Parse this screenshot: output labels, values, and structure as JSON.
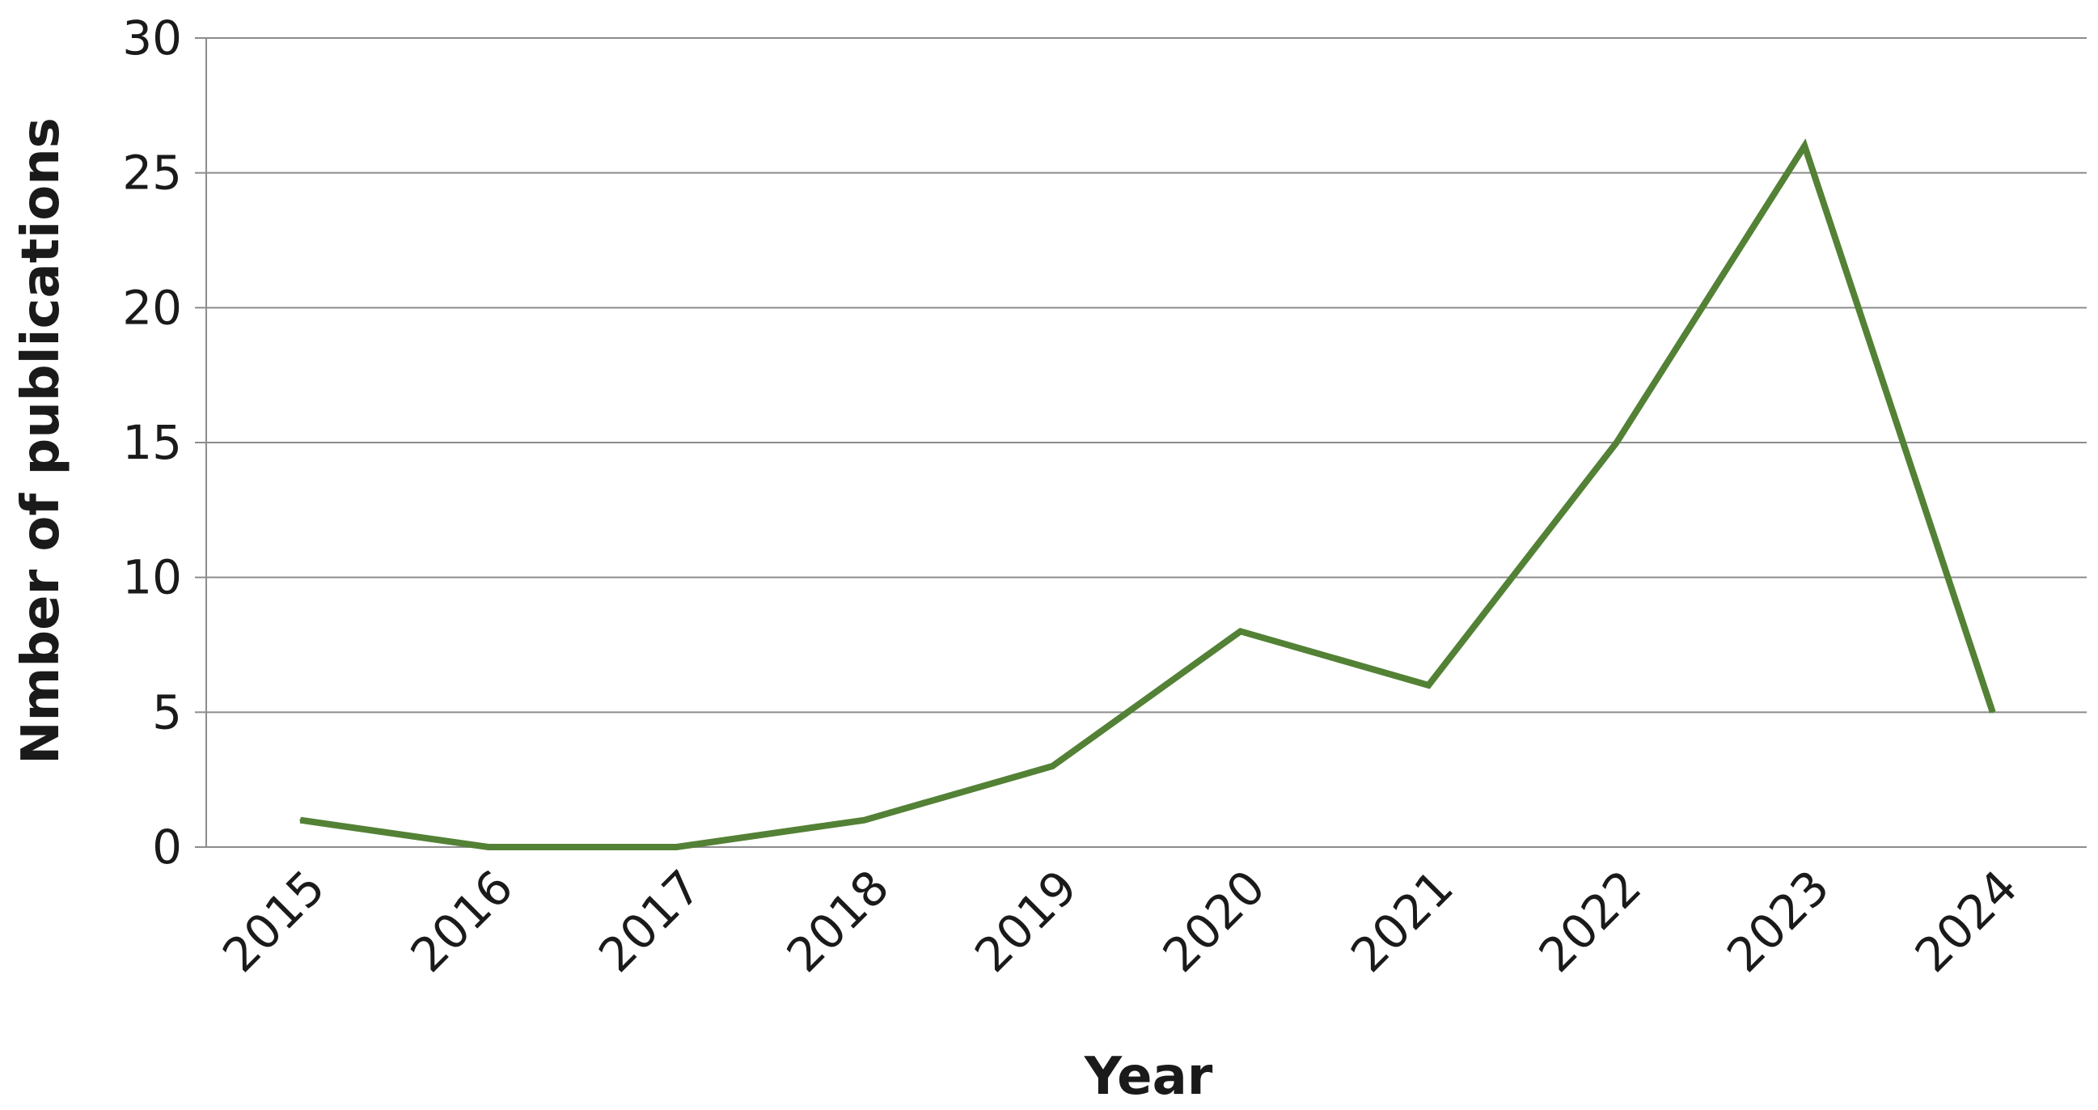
{
  "chart_data": {
    "type": "line",
    "title": "",
    "xlabel": "Year",
    "ylabel": "Nmber of publications",
    "categories": [
      "2015",
      "2016",
      "2017",
      "2018",
      "2019",
      "2020",
      "2021",
      "2022",
      "2023",
      "2024"
    ],
    "series": [
      {
        "values": [
          1,
          0,
          0,
          1,
          3,
          8,
          6,
          15,
          26,
          5
        ],
        "color": "#538135"
      }
    ],
    "ylim": [
      0,
      30
    ],
    "yticks": [
      0,
      5,
      10,
      15,
      20,
      25,
      30
    ],
    "grid": true,
    "legend": "none",
    "gridline_color": "#8c8c8c",
    "axis_color": "#8c8c8c"
  }
}
